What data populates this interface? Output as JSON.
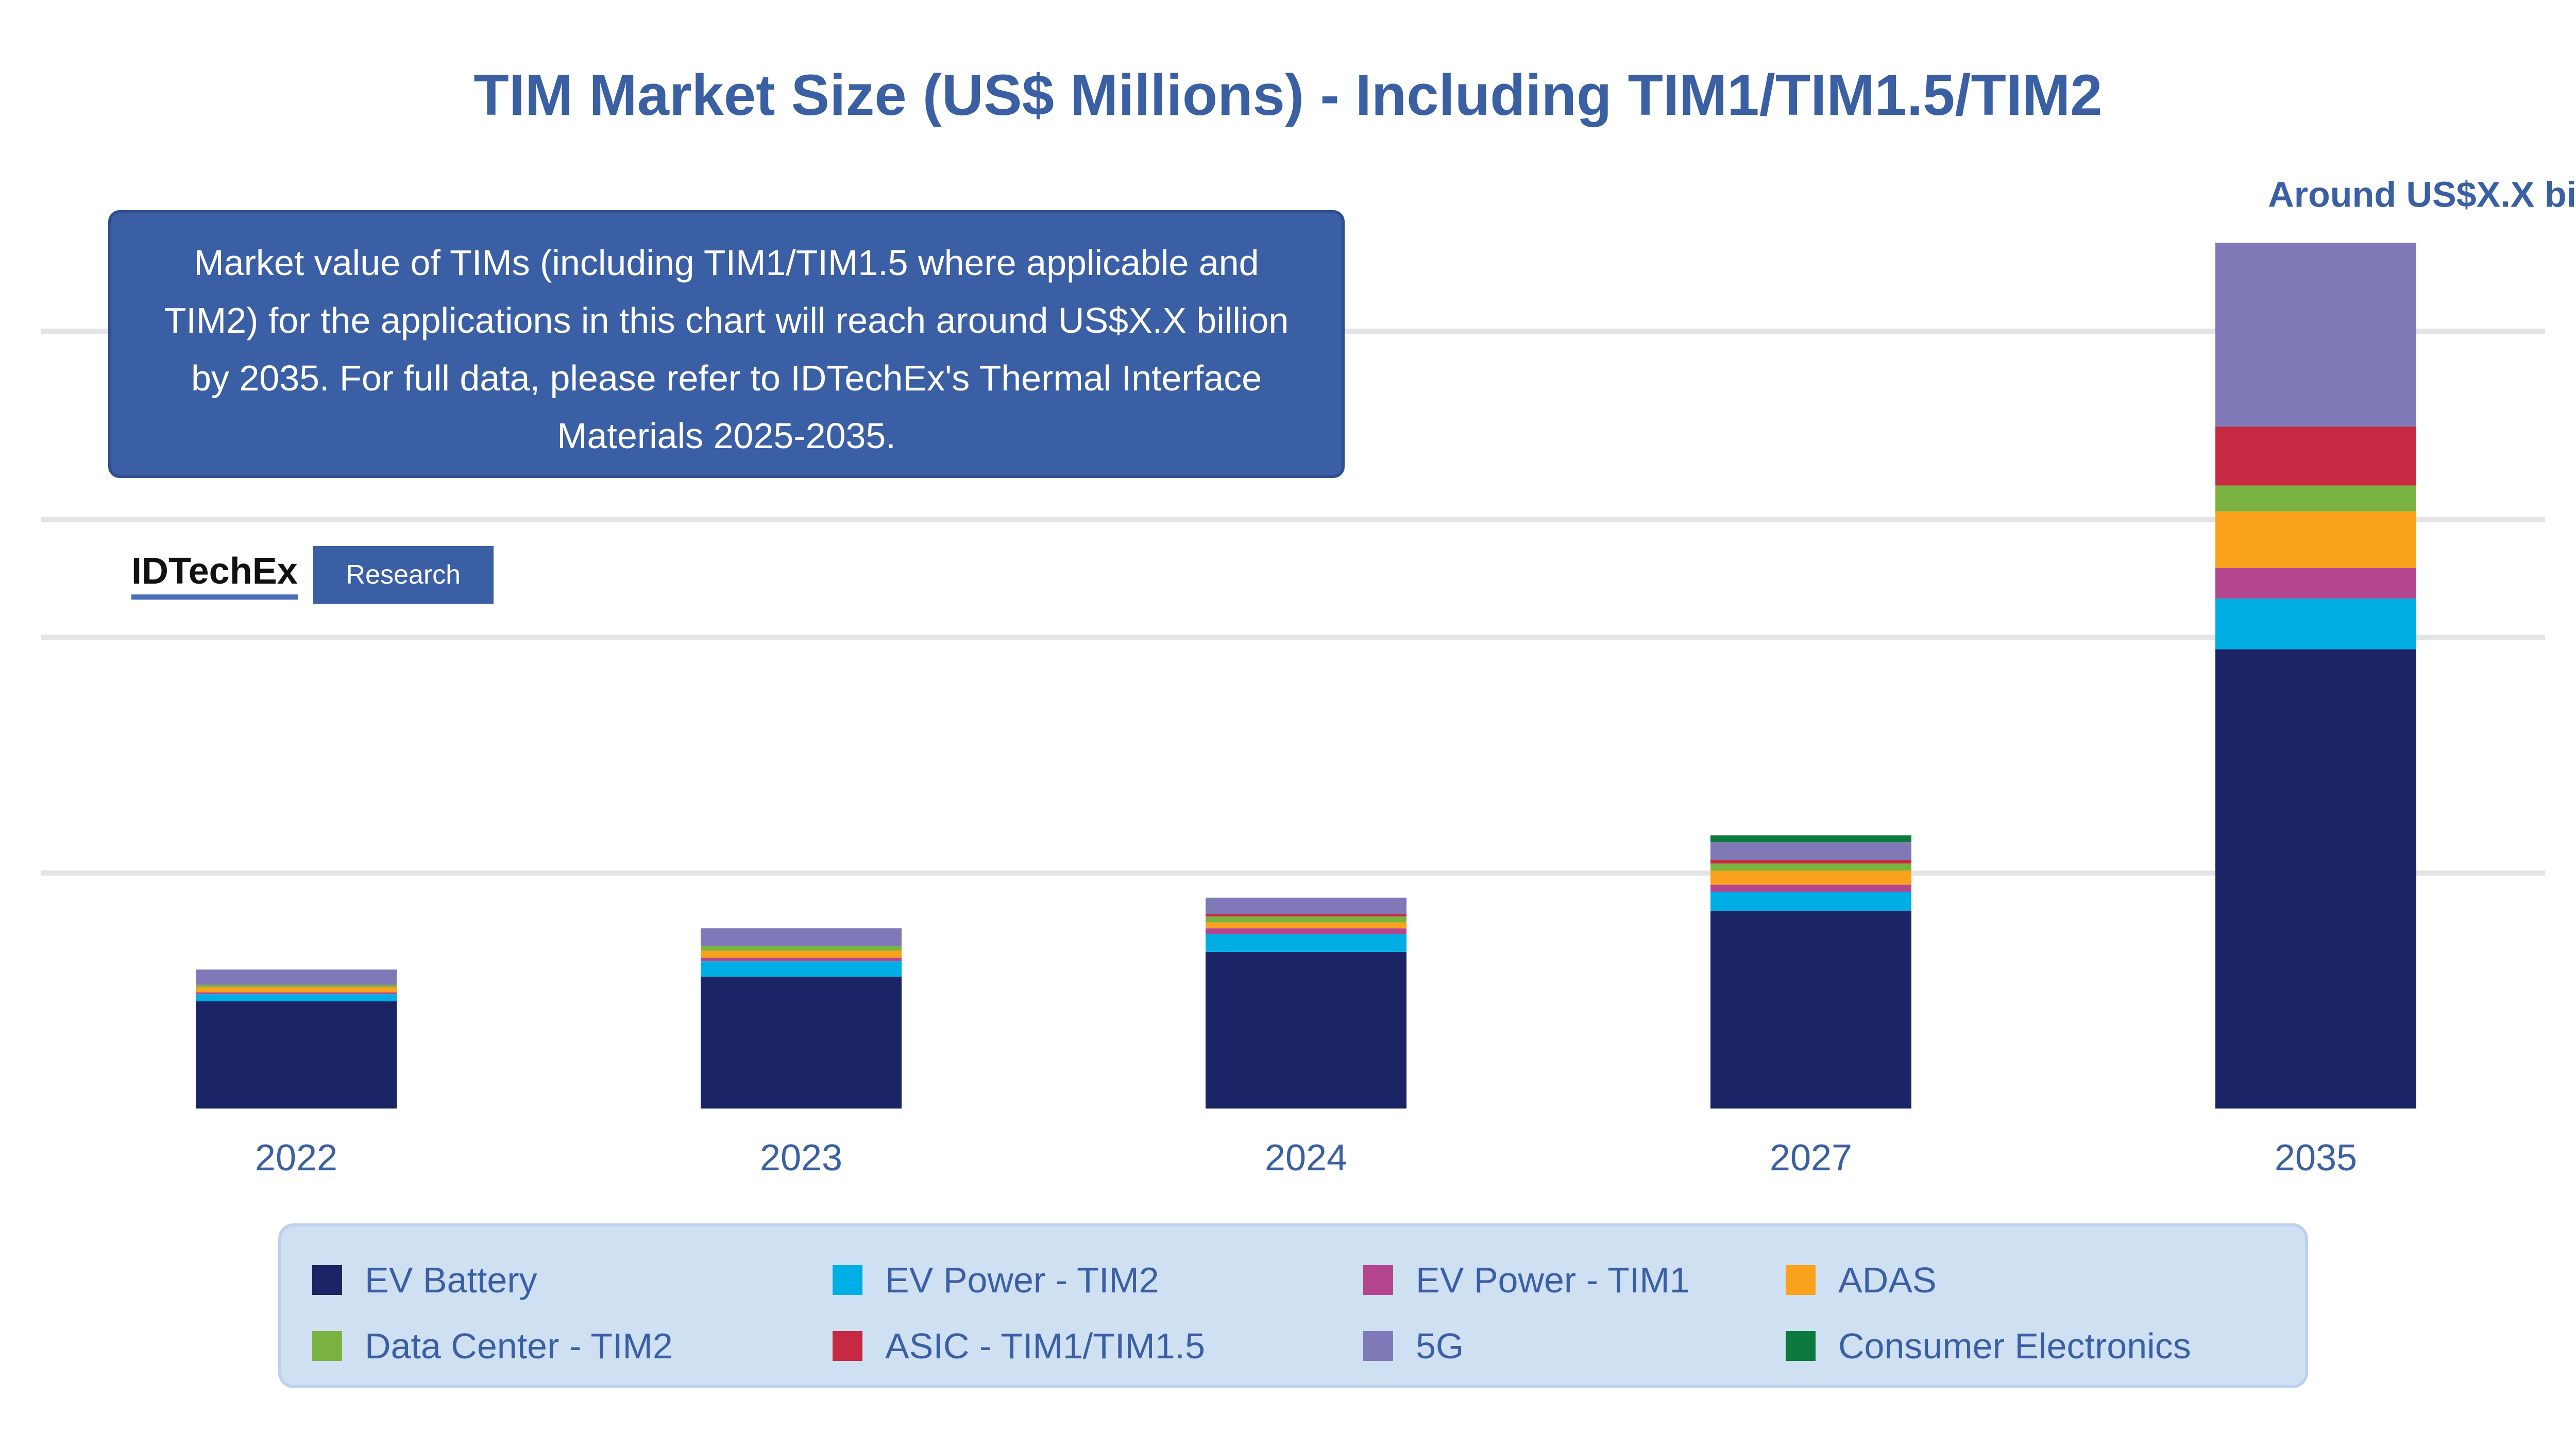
{
  "callout": {
    "text": "Market value of TIMs (including TIM1/TIM1.5 where applicable and TIM2) for the applications in this chart will reach around US$X.X billion by 2035. For full data, please refer to IDTechEx's Thermal Interface Materials 2025-2035."
  },
  "logo": {
    "name": "IDTechEx",
    "badge": "Research"
  },
  "chart_data": {
    "type": "bar",
    "stacked": true,
    "title": "TIM Market Size (US$ Millions) - Including TIM1/TIM1.5/TIM2",
    "categories": [
      "2022",
      "2023",
      "2024",
      "2027",
      "2035"
    ],
    "ylim": [
      0,
      3700
    ],
    "grid": true,
    "legend_position": "bottom",
    "total_annotation": {
      "category": "2035",
      "text": "Around US$X.X billion"
    },
    "series": [
      {
        "name": "EV Battery",
        "color": "#1b2565",
        "values": [
          455,
          560,
          665,
          840,
          1950
        ]
      },
      {
        "name": "EV Power - TIM2",
        "color": "#00aee6",
        "values": [
          30,
          65,
          75,
          80,
          215
        ]
      },
      {
        "name": "EV Power - TIM1",
        "color": "#b4458f",
        "values": [
          8,
          15,
          25,
          30,
          130
        ]
      },
      {
        "name": "ADAS",
        "color": "#faa21b",
        "values": [
          22,
          30,
          25,
          60,
          240
        ]
      },
      {
        "name": "Data Center - TIM2",
        "color": "#7ab33f",
        "values": [
          10,
          20,
          25,
          30,
          110
        ]
      },
      {
        "name": "ASIC - TIM1/TIM1.5",
        "color": "#c62a43",
        "values": [
          0,
          0,
          10,
          15,
          250
        ]
      },
      {
        "name": "5G",
        "color": "#8079b7",
        "values": [
          65,
          75,
          70,
          75,
          780
        ]
      },
      {
        "name": "Consumer Electronics",
        "color": "#0c7a3e",
        "values": [
          0,
          0,
          0,
          30,
          0
        ]
      }
    ]
  }
}
